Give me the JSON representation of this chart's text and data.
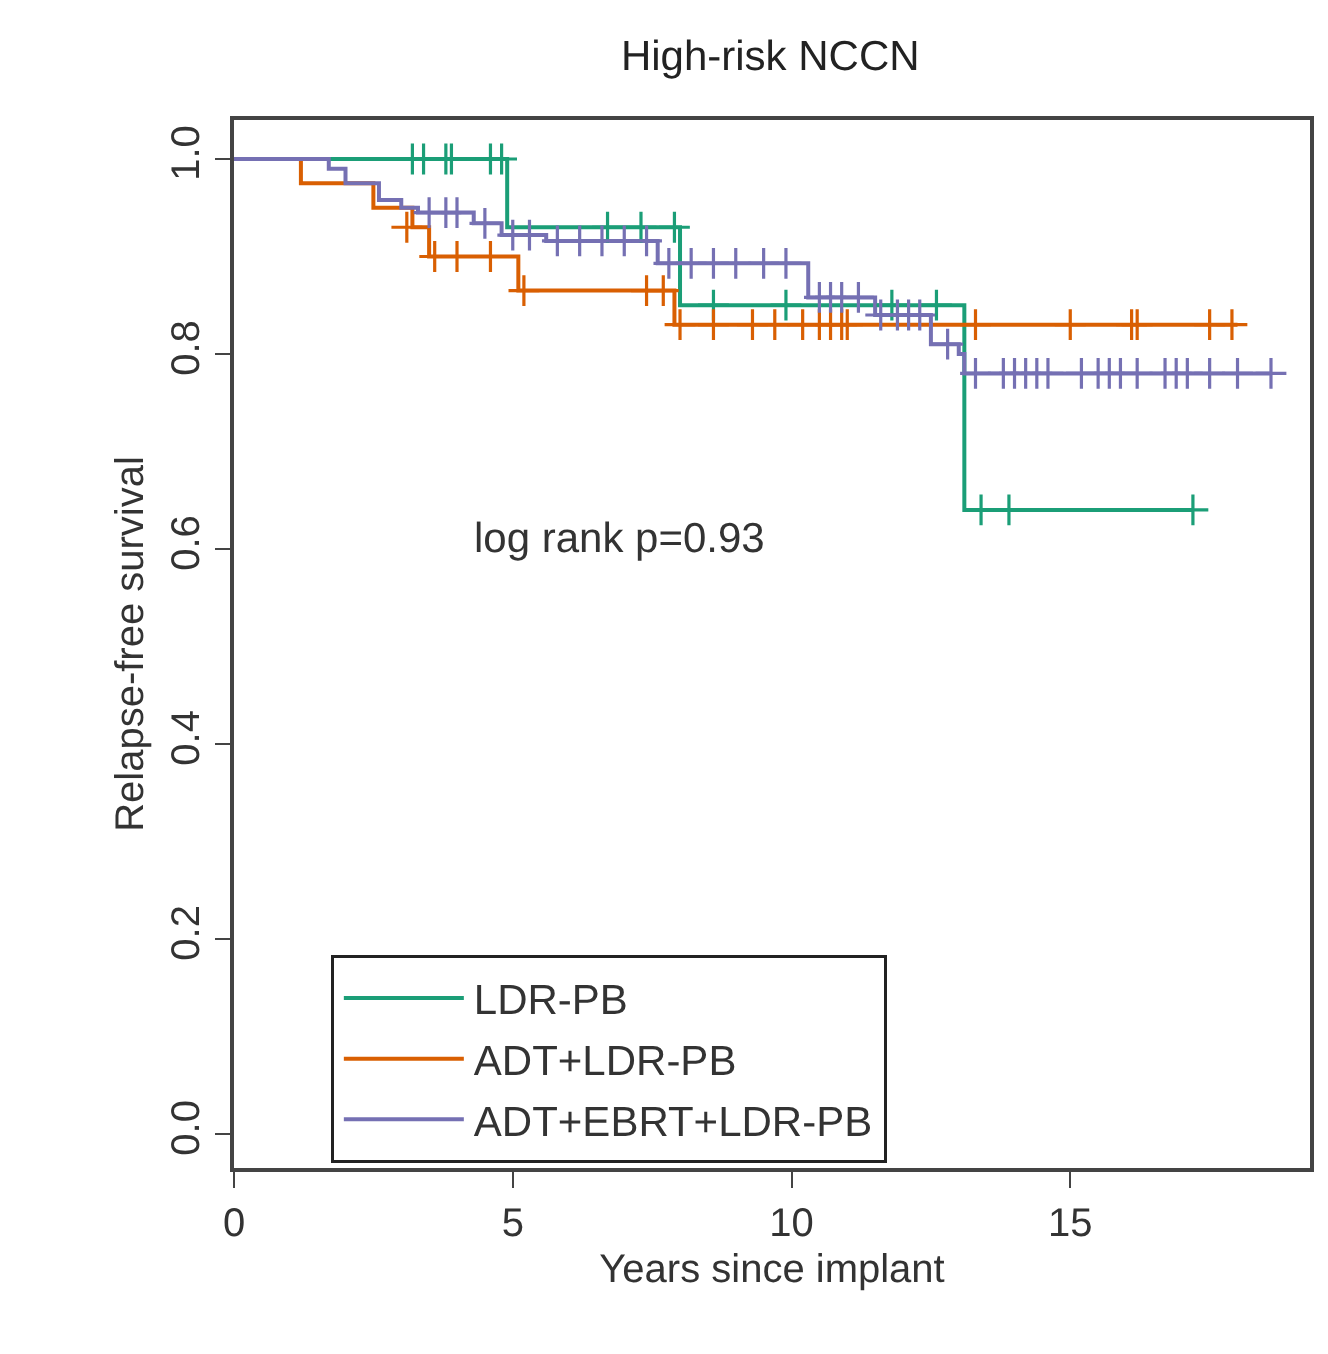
{
  "chart_data": {
    "type": "step",
    "title": "High-risk NCCN",
    "xlabel": "Years since implant",
    "ylabel": "Relapse-free survival",
    "annotations": [
      "log rank p=0.93"
    ],
    "xlim": [
      0,
      19.3
    ],
    "ylim": [
      -0.035,
      1.04
    ],
    "xticks": [
      0,
      5,
      10,
      15
    ],
    "yticks": [
      {
        "value": 0,
        "label": "0.0"
      },
      {
        "value": 0.2,
        "label": "0.2"
      },
      {
        "value": 0.4,
        "label": "0.4"
      },
      {
        "value": 0.6,
        "label": "0.6"
      },
      {
        "value": 0.8,
        "label": "0.8"
      },
      {
        "value": 1,
        "label": "1.0"
      }
    ],
    "legend": "bottom",
    "line_style": "solid",
    "series": [
      {
        "name": "LDR-PB",
        "color": "#1b9e77",
        "x": [
          0,
          4.9,
          8.0,
          13.1,
          17.2
        ],
        "values": [
          1.0,
          0.93,
          0.85,
          0.64,
          0.64
        ]
      },
      {
        "name": "ADT+LDR-PB",
        "color": "#d95f02",
        "x": [
          0,
          1.2,
          2.5,
          3.2,
          3.5,
          5.1,
          7.9,
          18.0
        ],
        "values": [
          1.0,
          0.975,
          0.95,
          0.93,
          0.9,
          0.865,
          0.83,
          0.83
        ]
      },
      {
        "name": "ADT+EBRT+LDR-PB",
        "color": "#7570b3",
        "x": [
          0,
          1.7,
          2.0,
          2.6,
          3.0,
          3.3,
          4.3,
          4.8,
          5.6,
          7.6,
          10.3,
          11.5,
          12.5,
          13.0,
          13.1,
          18.6
        ],
        "values": [
          1.0,
          0.99,
          0.975,
          0.958,
          0.95,
          0.945,
          0.934,
          0.922,
          0.916,
          0.893,
          0.858,
          0.84,
          0.81,
          0.8,
          0.78,
          0.78
        ]
      },
      {
        "type": "scatter",
        "marker": "cross",
        "color": "#1b9e77",
        "x": [
          3.2,
          3.4,
          3.8,
          3.9,
          4.6,
          4.8,
          6.7,
          7.3,
          7.9,
          8.6,
          9.9,
          11.8,
          12.6,
          13.4,
          13.9,
          17.2
        ],
        "values": [
          1.0,
          1.0,
          1.0,
          1.0,
          1.0,
          1.0,
          0.93,
          0.93,
          0.93,
          0.85,
          0.85,
          0.85,
          0.85,
          0.64,
          0.64,
          0.64
        ]
      },
      {
        "type": "scatter",
        "marker": "cross",
        "color": "#d95f02",
        "x": [
          3.1,
          3.6,
          4.0,
          4.6,
          5.2,
          7.4,
          7.7,
          8.0,
          8.6,
          9.3,
          9.7,
          10.2,
          10.5,
          10.7,
          10.9,
          11.0,
          13.3,
          15.0,
          16.1,
          16.2,
          17.5,
          17.9
        ],
        "values": [
          0.93,
          0.9,
          0.9,
          0.9,
          0.865,
          0.865,
          0.865,
          0.83,
          0.83,
          0.83,
          0.83,
          0.83,
          0.83,
          0.83,
          0.83,
          0.83,
          0.83,
          0.83,
          0.83,
          0.83,
          0.83,
          0.83
        ]
      },
      {
        "type": "scatter",
        "marker": "cross",
        "color": "#7570b3",
        "x": [
          3.5,
          3.8,
          4.0,
          4.5,
          5.0,
          5.3,
          5.8,
          6.2,
          6.6,
          7.0,
          7.4,
          7.8,
          8.2,
          8.6,
          9.0,
          9.5,
          9.9,
          10.5,
          10.7,
          10.9,
          11.2,
          11.6,
          11.9,
          12.1,
          12.3,
          12.8,
          13.3,
          13.8,
          14.0,
          14.2,
          14.4,
          14.6,
          15.2,
          15.5,
          15.7,
          15.9,
          16.2,
          16.7,
          16.9,
          17.1,
          17.5,
          18.0,
          18.6
        ],
        "values": [
          0.945,
          0.945,
          0.945,
          0.934,
          0.922,
          0.922,
          0.916,
          0.916,
          0.916,
          0.916,
          0.916,
          0.893,
          0.893,
          0.893,
          0.893,
          0.893,
          0.893,
          0.858,
          0.858,
          0.858,
          0.858,
          0.84,
          0.84,
          0.84,
          0.84,
          0.81,
          0.78,
          0.78,
          0.78,
          0.78,
          0.78,
          0.78,
          0.78,
          0.78,
          0.78,
          0.78,
          0.78,
          0.78,
          0.78,
          0.78,
          0.78,
          0.78,
          0.78
        ]
      }
    ]
  }
}
